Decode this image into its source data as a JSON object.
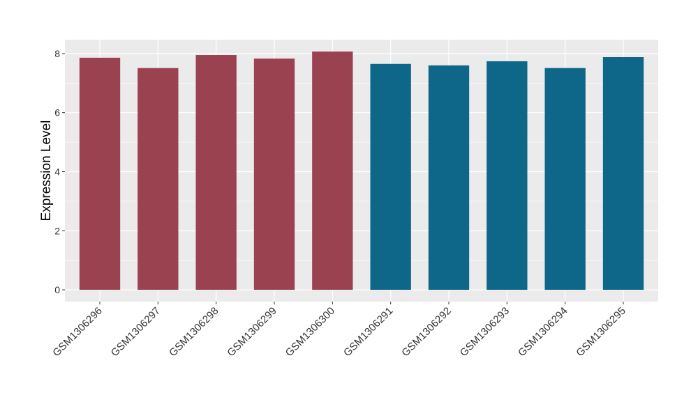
{
  "chart_data": {
    "type": "bar",
    "y_label": "Expression Level",
    "categories": [
      "GSM1306296",
      "GSM1306297",
      "GSM1306298",
      "GSM1306299",
      "GSM1306300",
      "GSM1306291",
      "GSM1306292",
      "GSM1306293",
      "GSM1306294",
      "GSM1306295"
    ],
    "values": [
      7.86,
      7.51,
      7.95,
      7.83,
      8.07,
      7.65,
      7.6,
      7.74,
      7.51,
      7.88
    ],
    "colors": [
      "#9b4250",
      "#9b4250",
      "#9b4250",
      "#9b4250",
      "#9b4250",
      "#0e6688",
      "#0e6688",
      "#0e6688",
      "#0e6688",
      "#0e6688"
    ],
    "ylim": [
      -0.4,
      8.47
    ],
    "yticks": [
      0,
      2,
      4,
      6,
      8
    ],
    "yminor": [
      1,
      3,
      5,
      7
    ],
    "grid": true
  }
}
